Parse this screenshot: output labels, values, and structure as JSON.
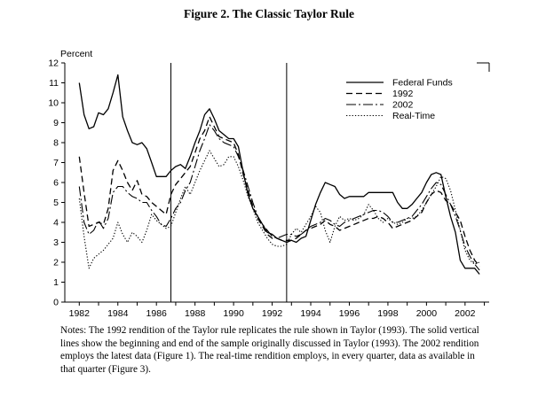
{
  "figure_title": "Figure 2.  The Classic Taylor Rule",
  "notes": "Notes: The 1992 rendition of the Taylor rule replicates the rule shown in Taylor (1993). The solid vertical lines show the beginning and end of the sample originally discussed in Taylor (1993). The 2002 rendition employs the latest data (Figure 1). The real-time rendition employs, in every quarter, data as available in that quarter (Figure 3).",
  "chart_data": {
    "type": "line",
    "title": "Figure 2.  The Classic Taylor Rule",
    "ylabel": "Percent",
    "xlabel": "",
    "xlim": [
      1981.25,
      2003.25
    ],
    "ylim": [
      0,
      12
    ],
    "x_ticks": [
      1982,
      1984,
      1986,
      1988,
      1990,
      1992,
      1994,
      1996,
      1998,
      2000,
      2002
    ],
    "x_tick_labels": [
      "1982",
      "1984",
      "1986",
      "1988",
      "1990",
      "1992",
      "1994",
      "1996",
      "1998",
      "2000",
      "2002"
    ],
    "y_ticks": [
      0,
      1,
      2,
      3,
      4,
      5,
      6,
      7,
      8,
      9,
      10,
      11,
      12
    ],
    "y_tick_labels": [
      "0",
      "1",
      "2",
      "3",
      "4",
      "5",
      "6",
      "7",
      "8",
      "9",
      "10",
      "11",
      "12"
    ],
    "vertical_lines": [
      1986.75,
      1992.75
    ],
    "grid": false,
    "legend_position": "top-right",
    "series": [
      {
        "name": "Federal Funds",
        "style": "solid",
        "x": [
          1982.0,
          1982.25,
          1982.5,
          1982.75,
          1983.0,
          1983.25,
          1983.5,
          1983.75,
          1984.0,
          1984.25,
          1984.5,
          1984.75,
          1985.0,
          1985.25,
          1985.5,
          1985.75,
          1986.0,
          1986.25,
          1986.5,
          1986.75,
          1987.0,
          1987.25,
          1987.5,
          1987.75,
          1988.0,
          1988.25,
          1988.5,
          1988.75,
          1989.0,
          1989.25,
          1989.5,
          1989.75,
          1990.0,
          1990.25,
          1990.5,
          1990.75,
          1991.0,
          1991.25,
          1991.5,
          1991.75,
          1992.0,
          1992.25,
          1992.5,
          1992.75,
          1993.0,
          1993.25,
          1993.5,
          1993.75,
          1994.0,
          1994.25,
          1994.5,
          1994.75,
          1995.0,
          1995.25,
          1995.5,
          1995.75,
          1996.0,
          1996.25,
          1996.5,
          1996.75,
          1997.0,
          1997.25,
          1997.5,
          1997.75,
          1998.0,
          1998.25,
          1998.5,
          1998.75,
          1999.0,
          1999.25,
          1999.5,
          1999.75,
          2000.0,
          2000.25,
          2000.5,
          2000.75,
          2001.0,
          2001.25,
          2001.5,
          2001.75,
          2002.0,
          2002.25,
          2002.5,
          2002.75
        ],
        "y": [
          11.0,
          9.4,
          8.7,
          8.8,
          9.5,
          9.4,
          9.7,
          10.5,
          11.4,
          9.3,
          8.6,
          8.0,
          7.9,
          8.0,
          7.7,
          7.0,
          6.3,
          6.3,
          6.3,
          6.6,
          6.8,
          6.9,
          6.7,
          7.3,
          8.0,
          8.6,
          9.4,
          9.7,
          9.2,
          8.6,
          8.4,
          8.2,
          8.2,
          7.8,
          6.5,
          5.4,
          4.7,
          4.3,
          3.9,
          3.5,
          3.4,
          3.2,
          3.1,
          3.0,
          3.1,
          3.0,
          3.2,
          3.3,
          4.1,
          4.9,
          5.5,
          6.0,
          5.9,
          5.8,
          5.4,
          5.2,
          5.3,
          5.3,
          5.3,
          5.3,
          5.5,
          5.5,
          5.5,
          5.5,
          5.5,
          5.5,
          5.0,
          4.7,
          4.7,
          4.9,
          5.2,
          5.5,
          6.0,
          6.4,
          6.5,
          6.4,
          5.3,
          4.3,
          3.5,
          2.1,
          1.7,
          1.7,
          1.7,
          1.4
        ]
      },
      {
        "name": "1992",
        "style": "dashed",
        "x": [
          1982.0,
          1982.25,
          1982.5,
          1982.75,
          1983.0,
          1983.25,
          1983.5,
          1983.75,
          1984.0,
          1984.25,
          1984.5,
          1984.75,
          1985.0,
          1985.25,
          1985.5,
          1985.75,
          1986.0,
          1986.25,
          1986.5,
          1986.75,
          1987.0,
          1987.25,
          1987.5,
          1987.75,
          1988.0,
          1988.25,
          1988.5,
          1988.75,
          1989.0,
          1989.25,
          1989.5,
          1989.75,
          1990.0,
          1990.25,
          1990.5,
          1990.75,
          1991.0,
          1991.25,
          1991.5,
          1991.75,
          1992.0,
          1992.25,
          1992.5,
          1992.75,
          1993.0,
          1993.25,
          1993.5,
          1993.75,
          1994.0,
          1994.25,
          1994.5,
          1994.75,
          1995.0,
          1995.25,
          1995.5,
          1995.75,
          1996.0,
          1996.25,
          1996.5,
          1996.75,
          1997.0,
          1997.25,
          1997.5,
          1997.75,
          1998.0,
          1998.25,
          1998.5,
          1998.75,
          1999.0,
          1999.25,
          1999.5,
          1999.75,
          2000.0,
          2000.25,
          2000.5,
          2000.75,
          2001.0,
          2001.25,
          2001.5,
          2001.75,
          2002.0,
          2002.25,
          2002.5,
          2002.75
        ],
        "y": [
          7.3,
          5.5,
          3.8,
          3.9,
          4.0,
          3.9,
          4.7,
          6.6,
          7.1,
          6.6,
          6.0,
          5.6,
          6.1,
          5.4,
          5.3,
          5.0,
          4.8,
          4.6,
          4.4,
          5.4,
          5.9,
          6.2,
          6.5,
          6.8,
          7.5,
          8.2,
          8.6,
          9.3,
          8.8,
          8.3,
          8.2,
          8.1,
          8.0,
          7.4,
          6.4,
          5.6,
          4.8,
          4.2,
          3.8,
          3.4,
          3.2,
          3.2,
          3.1,
          3.1,
          3.1,
          3.2,
          3.4,
          3.6,
          3.7,
          3.8,
          3.9,
          4.1,
          3.9,
          3.8,
          3.6,
          3.7,
          3.8,
          3.9,
          4.0,
          4.1,
          4.2,
          4.2,
          4.3,
          4.2,
          4.0,
          3.7,
          3.8,
          3.9,
          4.0,
          4.1,
          4.3,
          4.5,
          5.0,
          5.4,
          5.6,
          5.5,
          5.1,
          4.9,
          4.5,
          4.1,
          3.3,
          2.6,
          2.1,
          1.8
        ]
      },
      {
        "name": "2002",
        "style": "longdash",
        "x": [
          1982.0,
          1982.25,
          1982.5,
          1982.75,
          1983.0,
          1983.25,
          1983.5,
          1983.75,
          1984.0,
          1984.25,
          1984.5,
          1984.75,
          1985.0,
          1985.25,
          1985.5,
          1985.75,
          1986.0,
          1986.25,
          1986.5,
          1986.75,
          1987.0,
          1987.25,
          1987.5,
          1987.75,
          1988.0,
          1988.25,
          1988.5,
          1988.75,
          1989.0,
          1989.25,
          1989.5,
          1989.75,
          1990.0,
          1990.25,
          1990.5,
          1990.75,
          1991.0,
          1991.25,
          1991.5,
          1991.75,
          1992.0,
          1992.25,
          1992.5,
          1992.75,
          1993.0,
          1993.25,
          1993.5,
          1993.75,
          1994.0,
          1994.25,
          1994.5,
          1994.75,
          1995.0,
          1995.25,
          1995.5,
          1995.75,
          1996.0,
          1996.25,
          1996.5,
          1996.75,
          1997.0,
          1997.25,
          1997.5,
          1997.75,
          1998.0,
          1998.25,
          1998.5,
          1998.75,
          1999.0,
          1999.25,
          1999.5,
          1999.75,
          2000.0,
          2000.25,
          2000.5,
          2000.75,
          2001.0,
          2001.25,
          2001.5,
          2001.75,
          2002.0,
          2002.25,
          2002.5,
          2002.75
        ],
        "y": [
          5.8,
          4.0,
          3.4,
          3.6,
          4.1,
          3.7,
          4.2,
          5.5,
          5.8,
          5.8,
          5.5,
          5.3,
          5.2,
          5.0,
          5.0,
          4.6,
          4.3,
          3.9,
          3.8,
          4.2,
          4.7,
          5.0,
          5.6,
          6.0,
          6.8,
          7.6,
          8.2,
          8.9,
          8.6,
          8.2,
          8.0,
          7.9,
          7.8,
          7.3,
          6.6,
          5.8,
          5.0,
          4.3,
          3.9,
          3.6,
          3.3,
          3.2,
          3.3,
          3.4,
          3.4,
          3.3,
          3.4,
          3.6,
          3.8,
          3.9,
          4.0,
          4.2,
          4.1,
          3.9,
          3.8,
          4.0,
          4.1,
          4.2,
          4.3,
          4.4,
          4.5,
          4.6,
          4.6,
          4.5,
          4.3,
          4.0,
          4.0,
          4.1,
          4.2,
          4.3,
          4.6,
          4.9,
          5.3,
          5.7,
          6.0,
          5.9,
          5.4,
          4.9,
          4.3,
          3.6,
          2.8,
          2.3,
          1.9,
          1.6
        ]
      },
      {
        "name": "Real-Time",
        "style": "dotted",
        "x": [
          1982.0,
          1982.25,
          1982.5,
          1982.75,
          1983.0,
          1983.25,
          1983.5,
          1983.75,
          1984.0,
          1984.25,
          1984.5,
          1984.75,
          1985.0,
          1985.25,
          1985.5,
          1985.75,
          1986.0,
          1986.25,
          1986.5,
          1986.75,
          1987.0,
          1987.25,
          1987.5,
          1987.75,
          1988.0,
          1988.25,
          1988.5,
          1988.75,
          1989.0,
          1989.25,
          1989.5,
          1989.75,
          1990.0,
          1990.25,
          1990.5,
          1990.75,
          1991.0,
          1991.25,
          1991.5,
          1991.75,
          1992.0,
          1992.25,
          1992.5,
          1992.75,
          1993.0,
          1993.25,
          1993.5,
          1993.75,
          1994.0,
          1994.25,
          1994.5,
          1994.75,
          1995.0,
          1995.25,
          1995.5,
          1995.75,
          1996.0,
          1996.25,
          1996.5,
          1996.75,
          1997.0,
          1997.25,
          1997.5,
          1997.75,
          1998.0,
          1998.25,
          1998.5,
          1998.75,
          1999.0,
          1999.25,
          1999.5,
          1999.75,
          2000.0,
          2000.25,
          2000.5,
          2000.75,
          2001.0,
          2001.25,
          2001.5,
          2001.75,
          2002.0,
          2002.25,
          2002.5,
          2002.75
        ],
        "y": [
          5.2,
          3.3,
          1.7,
          2.2,
          2.4,
          2.6,
          2.9,
          3.2,
          4.0,
          3.4,
          3.0,
          3.5,
          3.3,
          3.0,
          3.6,
          4.4,
          4.1,
          3.9,
          3.7,
          3.8,
          4.5,
          5.2,
          5.8,
          5.4,
          6.0,
          6.6,
          7.1,
          7.6,
          7.2,
          6.8,
          6.9,
          7.3,
          7.3,
          6.8,
          6.1,
          5.3,
          4.7,
          4.0,
          3.6,
          3.2,
          2.9,
          2.8,
          2.8,
          2.9,
          3.4,
          3.7,
          3.5,
          3.9,
          4.3,
          4.8,
          4.5,
          3.6,
          3.0,
          3.8,
          4.3,
          4.1,
          4.2,
          4.1,
          4.2,
          4.4,
          4.9,
          4.6,
          4.2,
          4.0,
          4.2,
          4.0,
          3.9,
          4.0,
          4.2,
          4.2,
          4.3,
          4.6,
          5.0,
          5.4,
          5.8,
          6.3,
          6.2,
          5.6,
          4.6,
          3.6,
          2.6,
          2.1,
          1.9,
          2.0
        ]
      }
    ]
  }
}
